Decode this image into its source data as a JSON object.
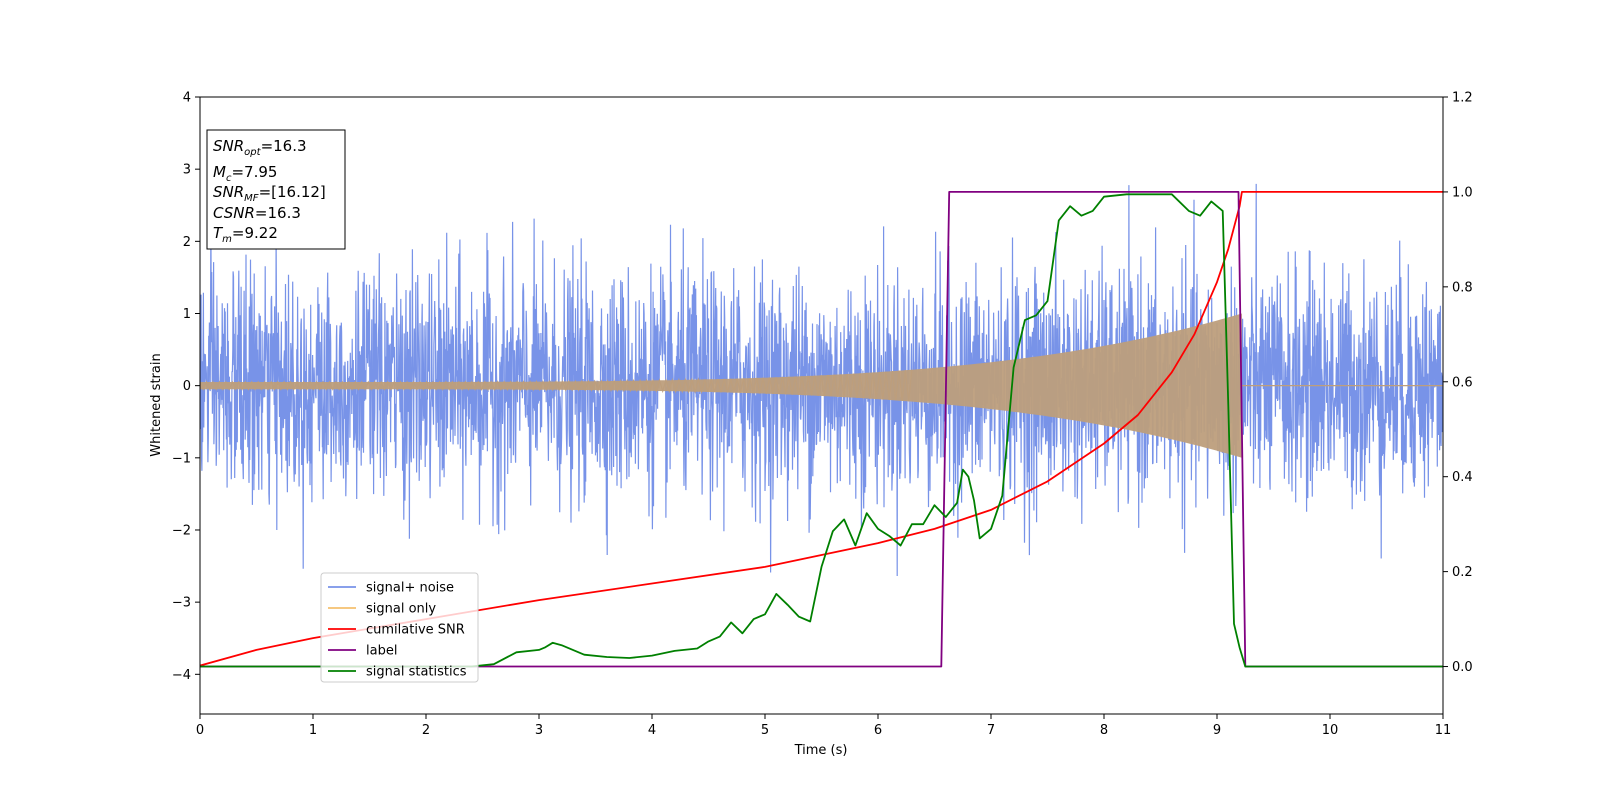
{
  "chart_data": {
    "type": "line",
    "xlabel": "Time (s)",
    "ylabel": "Whitened strain",
    "xlim": [
      0,
      11
    ],
    "ylim": [
      -4.55,
      4.0
    ],
    "y2lim": [
      -0.1,
      1.2
    ],
    "x_ticks": [
      0,
      1,
      2,
      3,
      4,
      5,
      6,
      7,
      8,
      9,
      10,
      11
    ],
    "y_ticks": [
      -4,
      -3,
      -2,
      -1,
      0,
      1,
      2,
      3,
      4
    ],
    "y_tick_labels": [
      "−4",
      "−3",
      "−2",
      "−1",
      "0",
      "1",
      "2",
      "3",
      "4"
    ],
    "y2_ticks": [
      0.0,
      0.2,
      0.4,
      0.6,
      0.8,
      1.0,
      1.2
    ],
    "y2_tick_labels": [
      "0.0",
      "0.2",
      "0.4",
      "0.6",
      "0.8",
      "1.0",
      "1.2"
    ],
    "grid": false,
    "legend_position": "lower-left",
    "info_box": {
      "lines": [
        {
          "main": "SNR",
          "sub": "opt",
          "value": "=16.3"
        },
        {
          "main": "M",
          "sub": "c",
          "value": "=7.95"
        },
        {
          "main": "SNR",
          "sub": "MF",
          "value": "=[16.12]"
        },
        {
          "main": "CSNR",
          "sub": "",
          "value": "=16.3"
        },
        {
          "main": "T",
          "sub": "m",
          "value": "=9.22"
        }
      ]
    },
    "series": [
      {
        "name": "signal+ noise",
        "axis": "left",
        "color": "#7893e8",
        "description_kind": "noise",
        "noise_typical_range": [
          -1.6,
          1.6
        ],
        "noise_peak_range": [
          -3.0,
          3.0
        ]
      },
      {
        "name": "signal only",
        "axis": "left",
        "color": "#f4c06f",
        "overlay_color": "#bd9e7c",
        "description_kind": "chirp",
        "amplitude_start": 0.05,
        "amplitude_end": 1.0,
        "merger_time": 9.22
      },
      {
        "name": "cumilative SNR",
        "axis": "right",
        "color": "#ff0000",
        "x": [
          0.0,
          0.5,
          1.0,
          2.0,
          3.0,
          4.0,
          5.0,
          6.0,
          6.5,
          7.0,
          7.5,
          8.0,
          8.3,
          8.6,
          8.8,
          9.0,
          9.1,
          9.2,
          9.22,
          9.23,
          9.25,
          11.0
        ],
        "y": [
          0.002,
          0.035,
          0.06,
          0.1,
          0.14,
          0.175,
          0.21,
          0.26,
          0.29,
          0.33,
          0.39,
          0.47,
          0.53,
          0.62,
          0.7,
          0.81,
          0.88,
          0.97,
          1.0,
          1.0,
          1.0,
          1.0
        ]
      },
      {
        "name": "label",
        "axis": "right",
        "color": "#800080",
        "x": [
          0.0,
          6.56,
          6.63,
          9.19,
          9.25,
          11.0
        ],
        "y": [
          0.0,
          0.0,
          1.0,
          1.0,
          0.0,
          0.0
        ]
      },
      {
        "name": "signal statistics",
        "axis": "right",
        "color": "#008000",
        "x": [
          0.0,
          2.4,
          2.6,
          2.8,
          3.0,
          3.05,
          3.12,
          3.2,
          3.4,
          3.6,
          3.8,
          4.0,
          4.2,
          4.4,
          4.5,
          4.6,
          4.7,
          4.8,
          4.9,
          5.0,
          5.1,
          5.2,
          5.3,
          5.4,
          5.5,
          5.6,
          5.7,
          5.8,
          5.9,
          6.0,
          6.1,
          6.2,
          6.3,
          6.4,
          6.5,
          6.6,
          6.7,
          6.75,
          6.8,
          6.85,
          6.9,
          7.0,
          7.1,
          7.2,
          7.3,
          7.4,
          7.5,
          7.6,
          7.7,
          7.8,
          7.9,
          8.0,
          8.2,
          8.4,
          8.6,
          8.75,
          8.85,
          8.95,
          9.05,
          9.1,
          9.15,
          9.2,
          9.25,
          11.0
        ],
        "y": [
          0.0,
          0.0,
          0.005,
          0.03,
          0.035,
          0.04,
          0.05,
          0.045,
          0.025,
          0.02,
          0.018,
          0.023,
          0.033,
          0.038,
          0.053,
          0.063,
          0.093,
          0.07,
          0.1,
          0.11,
          0.153,
          0.13,
          0.105,
          0.095,
          0.21,
          0.285,
          0.31,
          0.255,
          0.323,
          0.29,
          0.275,
          0.255,
          0.3,
          0.3,
          0.34,
          0.315,
          0.345,
          0.415,
          0.4,
          0.35,
          0.27,
          0.29,
          0.36,
          0.63,
          0.73,
          0.74,
          0.77,
          0.94,
          0.97,
          0.95,
          0.96,
          0.99,
          0.995,
          0.995,
          0.995,
          0.96,
          0.95,
          0.98,
          0.96,
          0.55,
          0.09,
          0.04,
          0.0,
          0.0
        ]
      }
    ]
  }
}
